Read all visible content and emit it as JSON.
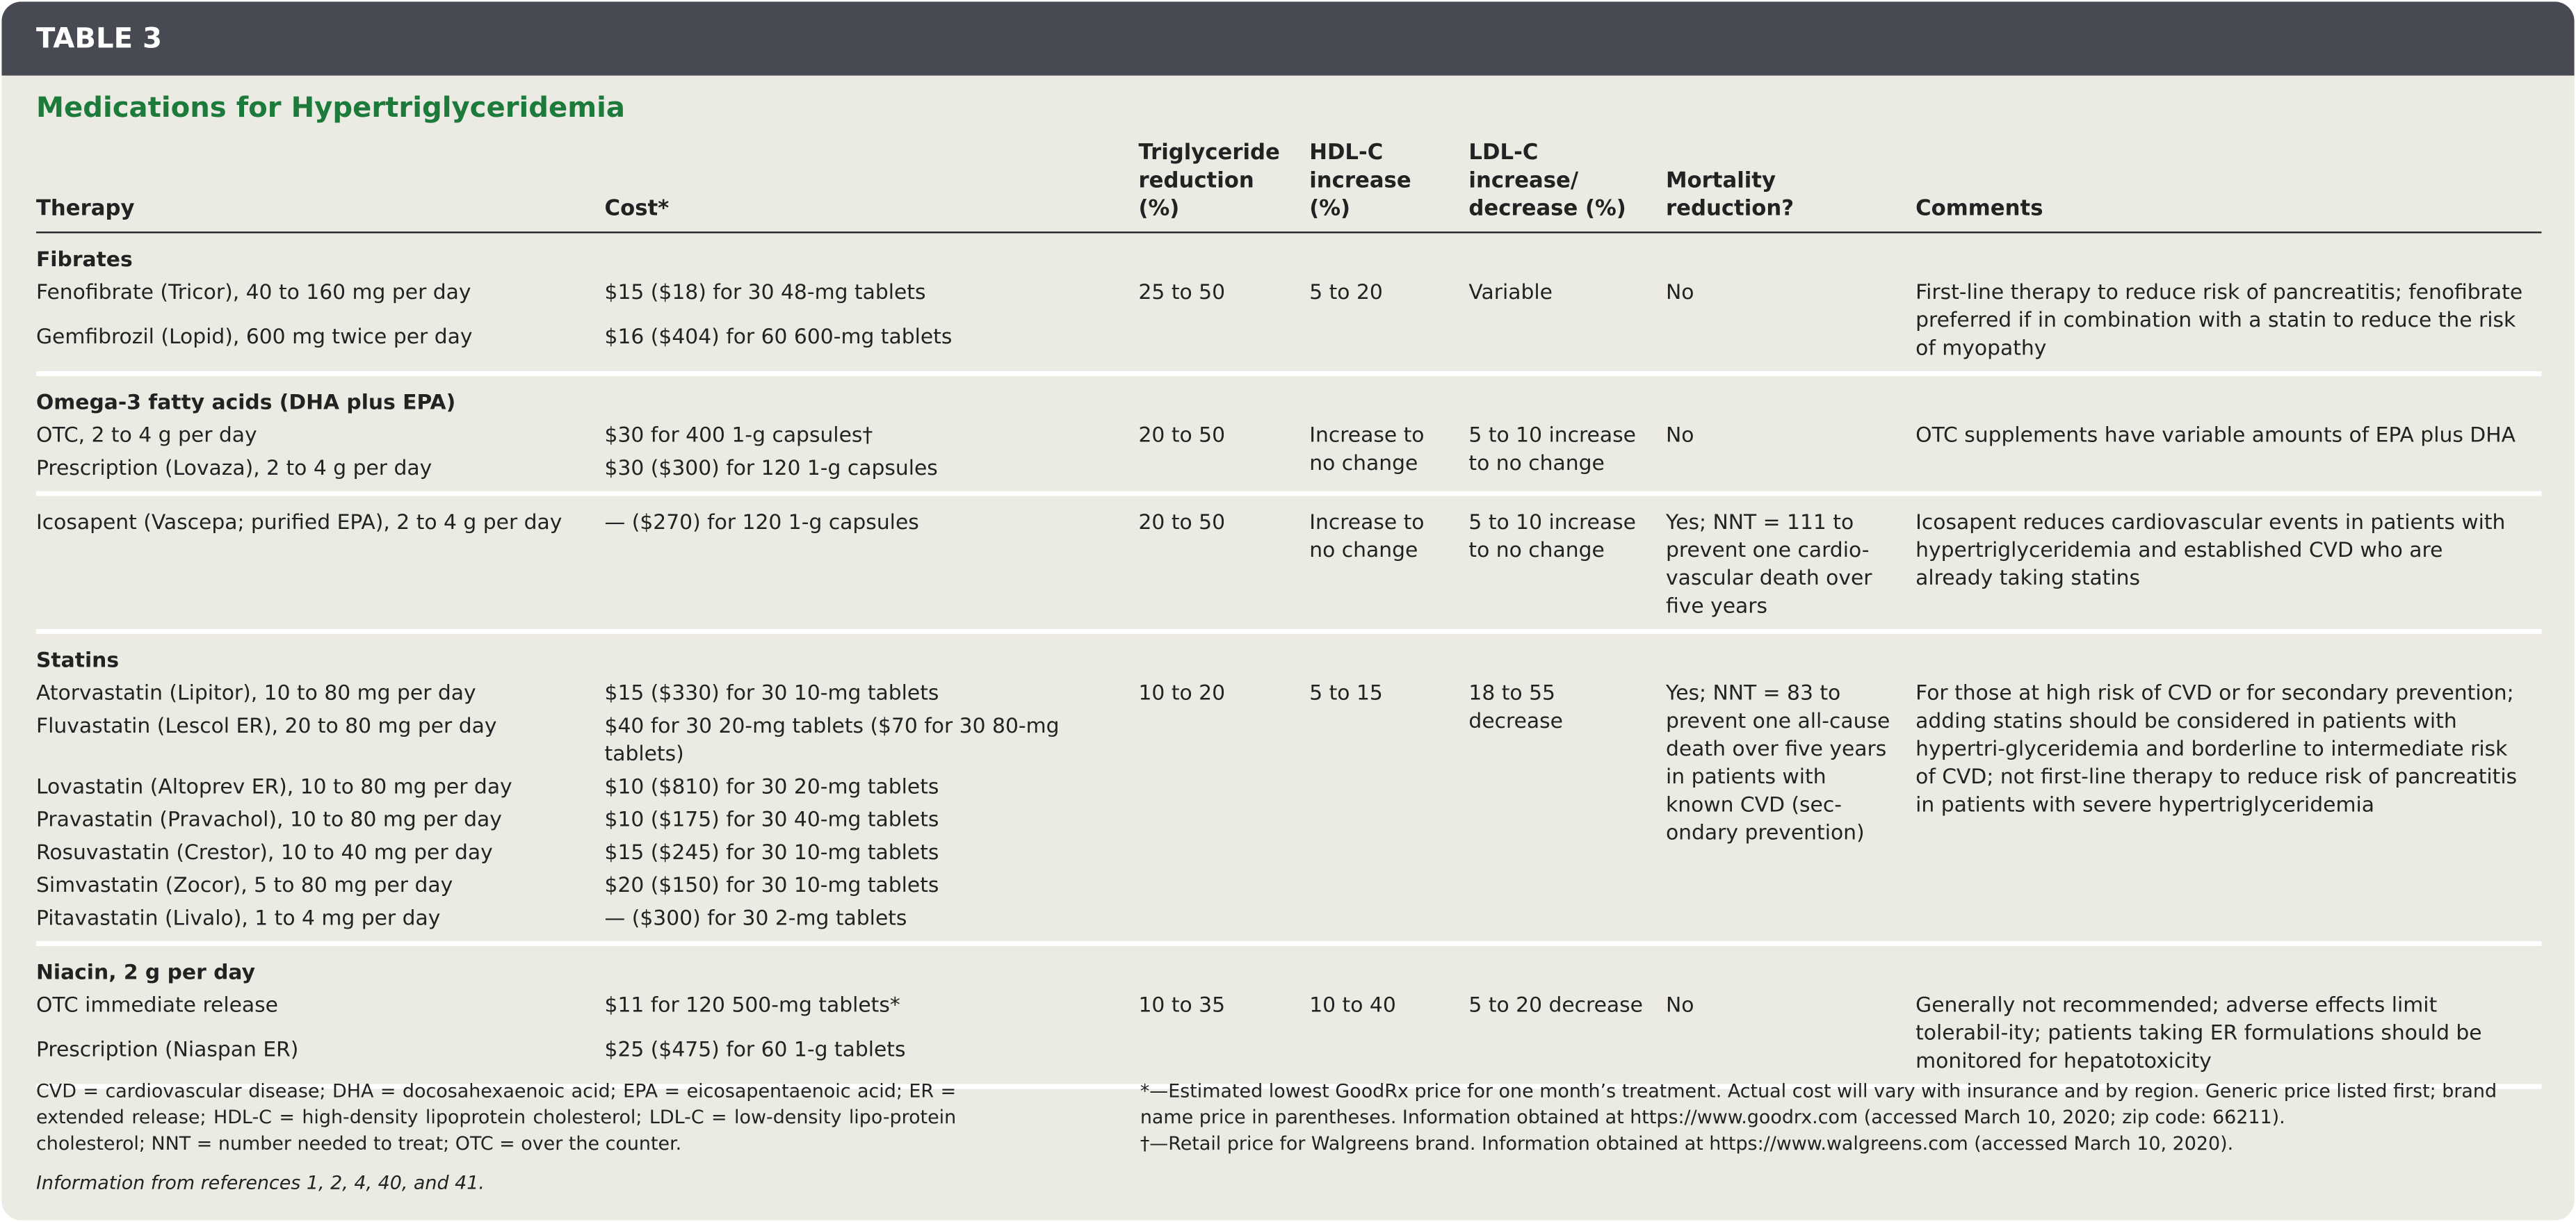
{
  "header": {
    "label": "TABLE 3",
    "title": "Medications for Hypertriglyceridemia"
  },
  "table": {
    "columns": [
      "Therapy",
      "Cost*",
      "Triglyceride reduction (%)",
      "HDL-C increase (%)",
      "LDL-C increase/ decrease (%)",
      "Mortality reduction?",
      "Comments"
    ],
    "sections": [
      {
        "heading": "Fibrates",
        "rows": [
          {
            "therapy": "Fenofibrate (Tricor), 40 to 160 mg per day",
            "cost": "$15 ($18) for 30 48-mg tablets"
          },
          {
            "therapy": "Gemfibrozil (Lopid), 600 mg twice per day",
            "cost": "$16 ($404) for 60 600-mg tablets"
          }
        ],
        "triglyceride": "25 to 50",
        "hdl": "5 to 20",
        "ldl": "Variable",
        "mortality": "No",
        "comments": "First-line therapy to reduce risk of pancreatitis; fenofibrate preferred if in combination with a statin to reduce the risk of myopathy"
      },
      {
        "heading": "Omega-3 fatty acids (DHA plus EPA)",
        "rows": [
          {
            "therapy": "OTC, 2 to 4 g per day",
            "cost": "$30 for 400 1-g capsules†"
          },
          {
            "therapy": "Prescription (Lovaza), 2 to 4 g per day",
            "cost": "$30 ($300) for 120 1-g capsules"
          }
        ],
        "triglyceride": "20 to 50",
        "hdl": "Increase to no change",
        "ldl": "5 to 10 increase to no change",
        "mortality": "No",
        "comments": "OTC supplements have variable amounts of EPA plus DHA"
      },
      {
        "rows": [
          {
            "therapy": "Icosapent (Vascepa; purified EPA), 2 to 4 g per day",
            "cost": "— ($270) for 120 1-g capsules"
          }
        ],
        "triglyceride": "20 to 50",
        "hdl": "Increase to no change",
        "ldl": "5 to 10 increase to no change",
        "mortality": "Yes; NNT = 111 to prevent one cardio-vascular death over five years",
        "comments": "Icosapent reduces cardiovascular events in patients with hypertriglyceridemia and established CVD who are already taking statins"
      },
      {
        "heading": "Statins",
        "rows": [
          {
            "therapy": "Atorvastatin (Lipitor), 10 to 80 mg per day",
            "cost": "$15 ($330) for 30 10-mg tablets"
          },
          {
            "therapy": "Fluvastatin (Lescol ER), 20 to 80 mg per day",
            "cost": "$40 for 30 20-mg tablets ($70 for 30 80-mg tablets)"
          },
          {
            "therapy": "Lovastatin (Altoprev ER), 10 to 80 mg per day",
            "cost": "$10 ($810) for 30 20-mg tablets"
          },
          {
            "therapy": "Pravastatin (Pravachol), 10 to 80 mg per day",
            "cost": "$10 ($175) for 30 40-mg tablets"
          },
          {
            "therapy": "Rosuvastatin (Crestor), 10 to 40 mg per day",
            "cost": "$15 ($245) for 30 10-mg tablets"
          },
          {
            "therapy": "Simvastatin (Zocor), 5 to 80 mg per day",
            "cost": "$20 ($150) for 30 10-mg tablets"
          },
          {
            "therapy": "Pitavastatin (Livalo), 1 to 4 mg per day",
            "cost": "— ($300) for 30 2-mg tablets"
          }
        ],
        "triglyceride": "10 to 20",
        "hdl": "5 to 15",
        "ldl": "18 to 55 decrease",
        "mortality": "Yes; NNT = 83 to prevent one all-cause death over five years in patients with known CVD (sec-ondary prevention)",
        "comments": "For those at high risk of CVD or for secondary prevention; adding statins should be considered in patients with hypertri-glyceridemia and borderline to intermediate risk of CVD; not first-line therapy to reduce risk of pancreatitis in patients with severe hypertriglyceridemia"
      },
      {
        "heading": "Niacin, 2 g per day",
        "rows": [
          {
            "therapy": "OTC immediate release",
            "cost": "$11 for 120 500-mg tablets*"
          },
          {
            "therapy": "Prescription (Niaspan ER)",
            "cost": "$25 ($475) for 60 1-g tablets"
          }
        ],
        "triglyceride": "10 to 35",
        "hdl": "10 to 40",
        "ldl": "5 to 20 decrease",
        "mortality": "No",
        "comments": "Generally not recommended; adverse effects limit tolerabil-ity; patients taking ER formulations should be monitored for hepatotoxicity"
      }
    ]
  },
  "footer": {
    "abbreviations": "CVD = cardiovascular disease; DHA = docosahexaenoic acid; EPA = eicosapentaenoic acid; ER = extended release; HDL-C = high-density lipoprotein cholesterol; LDL-C = low-density lipo-protein cholesterol; NNT = number needed to treat; OTC = over the counter.",
    "source": "Information from references 1, 2, 4, 40, and 41.",
    "notes": [
      "*—Estimated lowest GoodRx price for one month’s treatment. Actual cost will vary with insurance and by region. Generic price listed first; brand name price in parentheses. Information obtained at https://www.goodrx.com (accessed March 10, 2020; zip code: 66211).",
      "†—Retail price for Walgreens brand. Information obtained at https://www.walgreens.com (accessed March 10, 2020)."
    ]
  }
}
